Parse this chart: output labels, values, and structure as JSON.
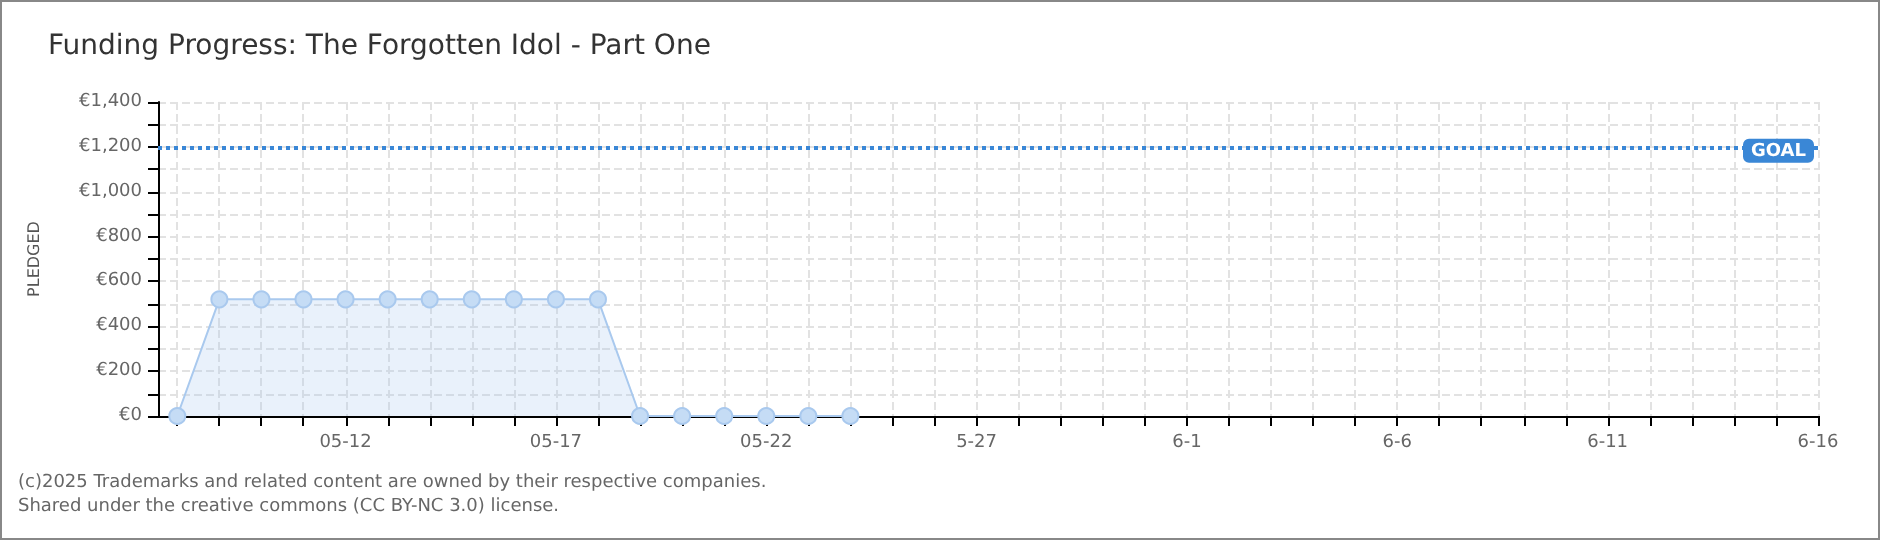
{
  "chart_data": {
    "type": "area",
    "title": "Funding Progress: The Forgotten Idol - Part One",
    "ylabel": "PLEDGED",
    "x": [
      "2025-05-08",
      "2025-05-09",
      "2025-05-10",
      "2025-05-11",
      "2025-05-12",
      "2025-05-13",
      "2025-05-14",
      "2025-05-15",
      "2025-05-16",
      "2025-05-17",
      "2025-05-18",
      "2025-05-19",
      "2025-05-20",
      "2025-05-21",
      "2025-05-22",
      "2025-05-23",
      "2025-05-24"
    ],
    "series": [
      {
        "color": "#a9c9ee",
        "values": [
          0,
          520,
          520,
          520,
          520,
          520,
          520,
          520,
          520,
          520,
          520,
          0,
          0,
          0,
          0,
          0,
          0
        ]
      }
    ],
    "xlim": [
      "2025-05-07T13:00",
      "2025-06-16"
    ],
    "xticks": [
      {
        "value": "2025-05-08",
        "label": null
      },
      {
        "value": "2025-05-09",
        "label": null
      },
      {
        "value": "2025-05-10",
        "label": null
      },
      {
        "value": "2025-05-11",
        "label": null
      },
      {
        "value": "2025-05-12",
        "label": "05-12"
      },
      {
        "value": "2025-05-13",
        "label": null
      },
      {
        "value": "2025-05-14",
        "label": null
      },
      {
        "value": "2025-05-15",
        "label": null
      },
      {
        "value": "2025-05-16",
        "label": null
      },
      {
        "value": "2025-05-17",
        "label": "05-17"
      },
      {
        "value": "2025-05-18",
        "label": null
      },
      {
        "value": "2025-05-19",
        "label": null
      },
      {
        "value": "2025-05-20",
        "label": null
      },
      {
        "value": "2025-05-21",
        "label": null
      },
      {
        "value": "2025-05-22",
        "label": "05-22"
      },
      {
        "value": "2025-05-23",
        "label": null
      },
      {
        "value": "2025-05-24",
        "label": null
      },
      {
        "value": "2025-05-25",
        "label": null
      },
      {
        "value": "2025-05-26",
        "label": null
      },
      {
        "value": "2025-05-27",
        "label": "5-27"
      },
      {
        "value": "2025-05-28",
        "label": null
      },
      {
        "value": "2025-05-29",
        "label": null
      },
      {
        "value": "2025-05-30",
        "label": null
      },
      {
        "value": "2025-05-31",
        "label": null
      },
      {
        "value": "2025-06-01",
        "label": "6-1"
      },
      {
        "value": "2025-06-02",
        "label": null
      },
      {
        "value": "2025-06-03",
        "label": null
      },
      {
        "value": "2025-06-04",
        "label": null
      },
      {
        "value": "2025-06-05",
        "label": null
      },
      {
        "value": "2025-06-06",
        "label": "6-6"
      },
      {
        "value": "2025-06-07",
        "label": null
      },
      {
        "value": "2025-06-08",
        "label": null
      },
      {
        "value": "2025-06-09",
        "label": null
      },
      {
        "value": "2025-06-10",
        "label": null
      },
      {
        "value": "2025-06-11",
        "label": "6-11"
      },
      {
        "value": "2025-06-12",
        "label": null
      },
      {
        "value": "2025-06-13",
        "label": null
      },
      {
        "value": "2025-06-14",
        "label": null
      },
      {
        "value": "2025-06-15",
        "label": null
      },
      {
        "value": "2025-06-16",
        "label": "6-16"
      }
    ],
    "ylim": [
      0,
      1400
    ],
    "yticks": [
      {
        "value": 0,
        "label": "€0"
      },
      {
        "value": 100,
        "label": null
      },
      {
        "value": 200,
        "label": "€200"
      },
      {
        "value": 300,
        "label": null
      },
      {
        "value": 400,
        "label": "€400"
      },
      {
        "value": 500,
        "label": null
      },
      {
        "value": 600,
        "label": "€600"
      },
      {
        "value": 700,
        "label": null
      },
      {
        "value": 800,
        "label": "€800"
      },
      {
        "value": 900,
        "label": null
      },
      {
        "value": 1000,
        "label": "€1,000"
      },
      {
        "value": 1100,
        "label": null
      },
      {
        "value": 1200,
        "label": "€1,200"
      },
      {
        "value": 1300,
        "label": null
      },
      {
        "value": 1400,
        "label": "€1,400"
      }
    ],
    "ref_lines": [
      {
        "axis": "y",
        "value": 1200,
        "label": "GOAL",
        "color": "#3a87d6",
        "line_style": "dotted"
      }
    ],
    "grid": true,
    "marker": "circle",
    "line_style": "solid",
    "annotations": [
      "(c)2025 Trademarks and related content are owned by their respective companies.",
      "Shared under the creative commons (CC BY-NC 3.0) license."
    ]
  }
}
